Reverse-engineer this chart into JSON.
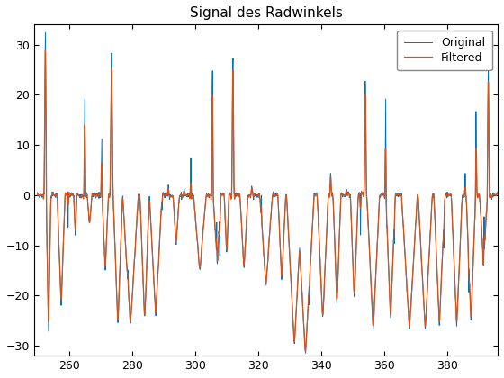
{
  "title": "Signal des Radwinkels",
  "xlim": [
    249,
    396
  ],
  "ylim": [
    -32,
    34
  ],
  "xticks": [
    260,
    280,
    300,
    320,
    340,
    360,
    380
  ],
  "yticks": [
    -30,
    -20,
    -10,
    0,
    10,
    20,
    30
  ],
  "original_color": "#0072BD",
  "filtered_color": "#D95319",
  "legend_labels": [
    "Original",
    "Filtered"
  ],
  "figsize": [
    5.6,
    4.2
  ],
  "dpi": 100,
  "background_color": "#FFFFFF",
  "seed": 7,
  "x_start": 250.0,
  "x_end": 396.0,
  "n_points": 1460
}
